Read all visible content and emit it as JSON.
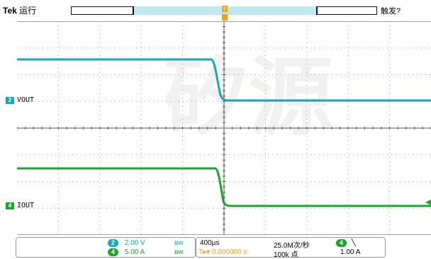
{
  "header": {
    "brand": "Tek",
    "run_state": "运行",
    "trigger_status": "触发?"
  },
  "channels": [
    {
      "id": "2",
      "label": "VOUT",
      "color": "#13a8b8",
      "scale": "2.00 V"
    },
    {
      "id": "4",
      "label": "IOUT",
      "color": "#1aa52c",
      "scale": "5.00 A"
    }
  ],
  "timebase": {
    "horizontal": "400µs",
    "sample_rate": "25.0M次/秒",
    "record_length": "100k 点",
    "trigger_delay": "0.000000 s"
  },
  "trigger": {
    "source": "4",
    "slope_icon": "falling-edge-icon",
    "level": "1.00 A"
  },
  "colors": {
    "ch2": "#13a8b8",
    "ch4": "#1aa52c",
    "trigger": "#f2a20f",
    "grid": "#9a9a9a"
  },
  "watermark": "矽源"
}
